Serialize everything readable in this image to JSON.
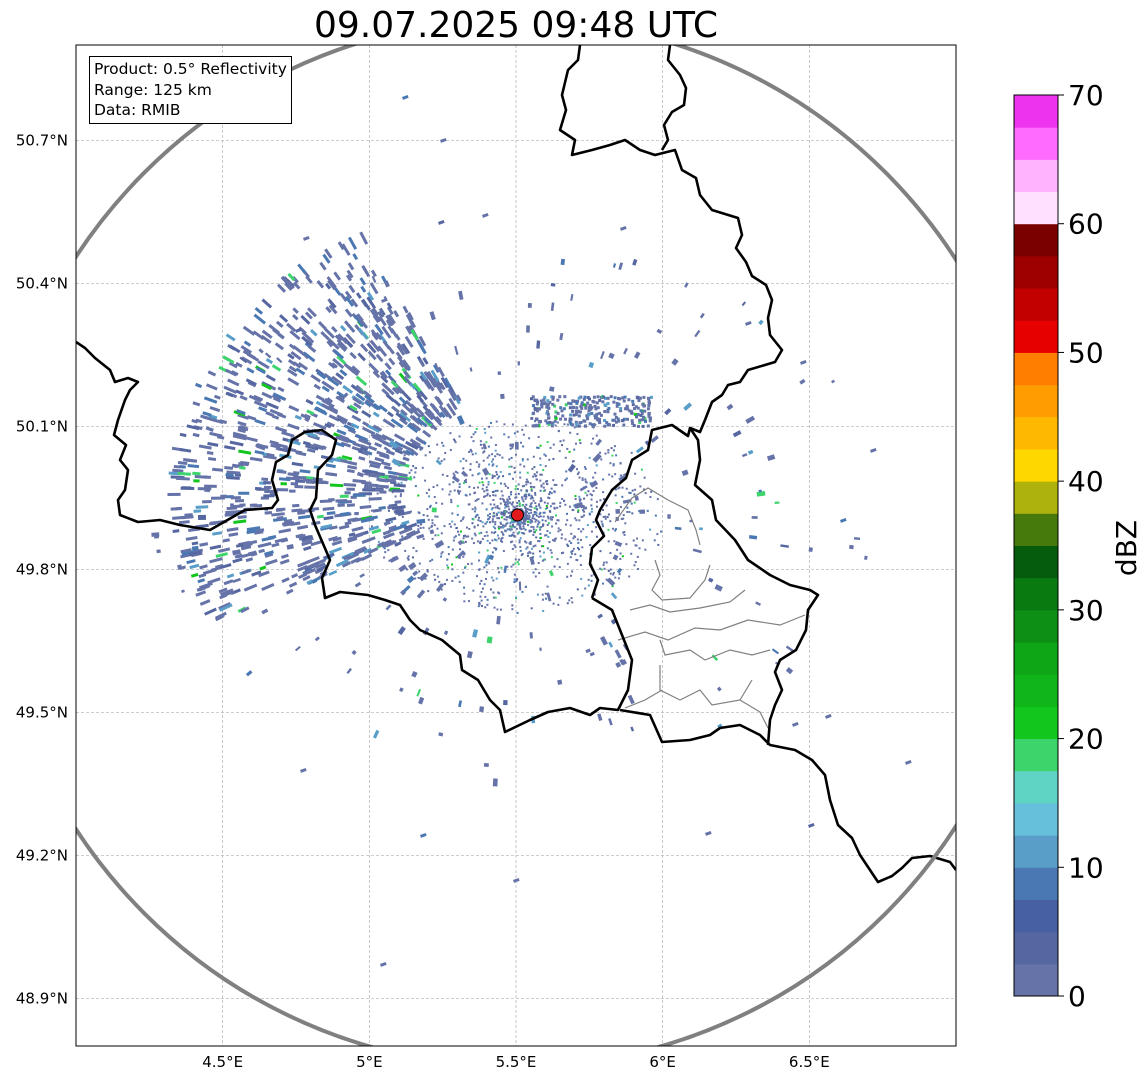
{
  "title": "09.07.2025 09:48 UTC",
  "info_box": {
    "product": "Product: 0.5° Reflectivity",
    "range": "Range: 125 km",
    "data": "Data: RMIB"
  },
  "map": {
    "lon_range": [
      4.0,
      7.0
    ],
    "lat_range": [
      48.8,
      50.9
    ],
    "lon_ticks": [
      {
        "value": 4.5,
        "label": "4.5°E"
      },
      {
        "value": 5.0,
        "label": "5°E"
      },
      {
        "value": 5.5,
        "label": "5.5°E"
      },
      {
        "value": 6.0,
        "label": "6°E"
      },
      {
        "value": 6.5,
        "label": "6.5°E"
      }
    ],
    "lat_ticks": [
      {
        "value": 50.7,
        "label": "50.7°N"
      },
      {
        "value": 50.4,
        "label": "50.4°N"
      },
      {
        "value": 50.1,
        "label": "50.1°N"
      },
      {
        "value": 49.8,
        "label": "49.8°N"
      },
      {
        "value": 49.5,
        "label": "49.5°N"
      },
      {
        "value": 49.2,
        "label": "49.2°N"
      },
      {
        "value": 48.9,
        "label": "48.9°N"
      }
    ],
    "radar_site": {
      "lon": 5.505,
      "lat": 49.914
    },
    "colors": {
      "range_ring": "#808080",
      "border": "#000000",
      "admin_border": "#808080",
      "grid": "#b0b0b0",
      "radar_marker": "#e31a1c"
    }
  },
  "colorbar": {
    "title": "dBZ",
    "min": 0,
    "max": 70,
    "ticks": [
      {
        "value": 0,
        "label": "0"
      },
      {
        "value": 10,
        "label": "10"
      },
      {
        "value": 20,
        "label": "20"
      },
      {
        "value": 30,
        "label": "30"
      },
      {
        "value": 40,
        "label": "40"
      },
      {
        "value": 50,
        "label": "50"
      },
      {
        "value": 60,
        "label": "60"
      },
      {
        "value": 70,
        "label": "70"
      }
    ],
    "colors": [
      "#6673a8",
      "#5566a0",
      "#4660a3",
      "#4a78b2",
      "#589ec8",
      "#66c0dc",
      "#60d4c4",
      "#3dd46c",
      "#12c61e",
      "#10b51a",
      "#0ea516",
      "#0d8e14",
      "#087a10",
      "#055c0c",
      "#467a0c",
      "#aeb20c",
      "#ffd700",
      "#ffb800",
      "#ff9c00",
      "#ff7e00",
      "#e60000",
      "#c20000",
      "#9e0000",
      "#7a0000",
      "#ffe0ff",
      "#ffb3ff",
      "#ff6aff",
      "#ee33ee"
    ]
  }
}
